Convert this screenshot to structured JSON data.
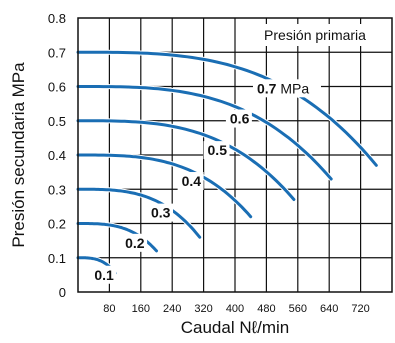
{
  "chart_data": {
    "type": "line",
    "legend_title": "Presión primaria",
    "xlabel": "Caudal Nℓ/min",
    "ylabel": "Presión secundaria MPa",
    "xlim": [
      0,
      800
    ],
    "ylim": [
      0,
      0.8
    ],
    "xticks": [
      "80",
      "160",
      "240",
      "320",
      "400",
      "480",
      "560",
      "640",
      "720"
    ],
    "yticks": [
      "0",
      "0.1",
      "0.2",
      "0.3",
      "0.4",
      "0.5",
      "0.6",
      "0.7",
      "0.8"
    ],
    "unit_label": "MPa",
    "grid": true,
    "series": [
      {
        "name": "0.1",
        "start": 0.1,
        "end_x": 95,
        "end_y": 0.055
      },
      {
        "name": "0.2",
        "start": 0.2,
        "end_x": 200,
        "end_y": 0.12
      },
      {
        "name": "0.3",
        "start": 0.3,
        "end_x": 310,
        "end_y": 0.16
      },
      {
        "name": "0.4",
        "start": 0.4,
        "end_x": 440,
        "end_y": 0.22
      },
      {
        "name": "0.5",
        "start": 0.5,
        "end_x": 550,
        "end_y": 0.27
      },
      {
        "name": "0.6",
        "start": 0.6,
        "end_x": 645,
        "end_y": 0.33
      },
      {
        "name": "0.7",
        "start": 0.7,
        "end_x": 760,
        "end_y": 0.37
      }
    ],
    "curve_color": "#1a6eb4"
  }
}
